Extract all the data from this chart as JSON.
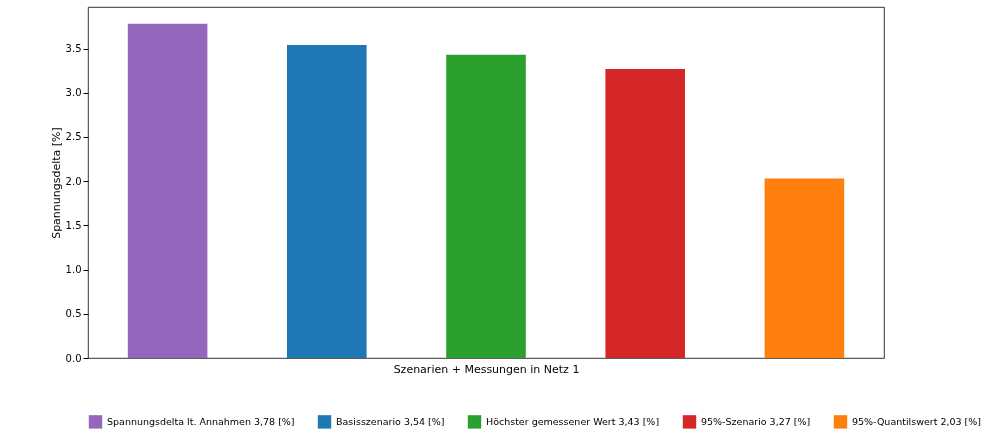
{
  "chart_data": {
    "type": "bar",
    "xlabel": "Szenarien + Messungen in Netz 1",
    "ylabel": "Spannungsdelta [%]",
    "categories": [
      null,
      null,
      null,
      null,
      null
    ],
    "series": [
      {
        "name": "Spannungsdelta lt. Annahmen 3,78 [%]",
        "color": "#9467bd",
        "values": [
          3.78,
          null,
          null,
          null,
          null
        ]
      },
      {
        "name": "Basisszenario 3,54 [%]",
        "color": "#1f77b4",
        "values": [
          null,
          3.54,
          null,
          null,
          null
        ]
      },
      {
        "name": "Höchster gemessener Wert 3,43 [%]",
        "color": "#2ca02c",
        "values": [
          null,
          null,
          3.43,
          null,
          null
        ]
      },
      {
        "name": "95%-Szenario 3,27 [%]",
        "color": "#d62728",
        "values": [
          null,
          null,
          null,
          3.27,
          null
        ]
      },
      {
        "name": "95%-Quantilswert 2,03 [%]",
        "color": "#ff7f0e",
        "values": [
          null,
          null,
          null,
          null,
          2.03
        ]
      }
    ],
    "ylim": [
      0,
      3.97
    ],
    "yticks": [
      {
        "value": 0,
        "label": "0.0"
      },
      0.5,
      {
        "value": 1,
        "label": "1.0"
      },
      1.5,
      {
        "value": 2,
        "label": "2.0"
      },
      2.5,
      {
        "value": 3,
        "label": "3.0"
      },
      3.5
    ],
    "stacked": true,
    "grid": false,
    "legend": "bottom",
    "tick_labels": "y"
  }
}
